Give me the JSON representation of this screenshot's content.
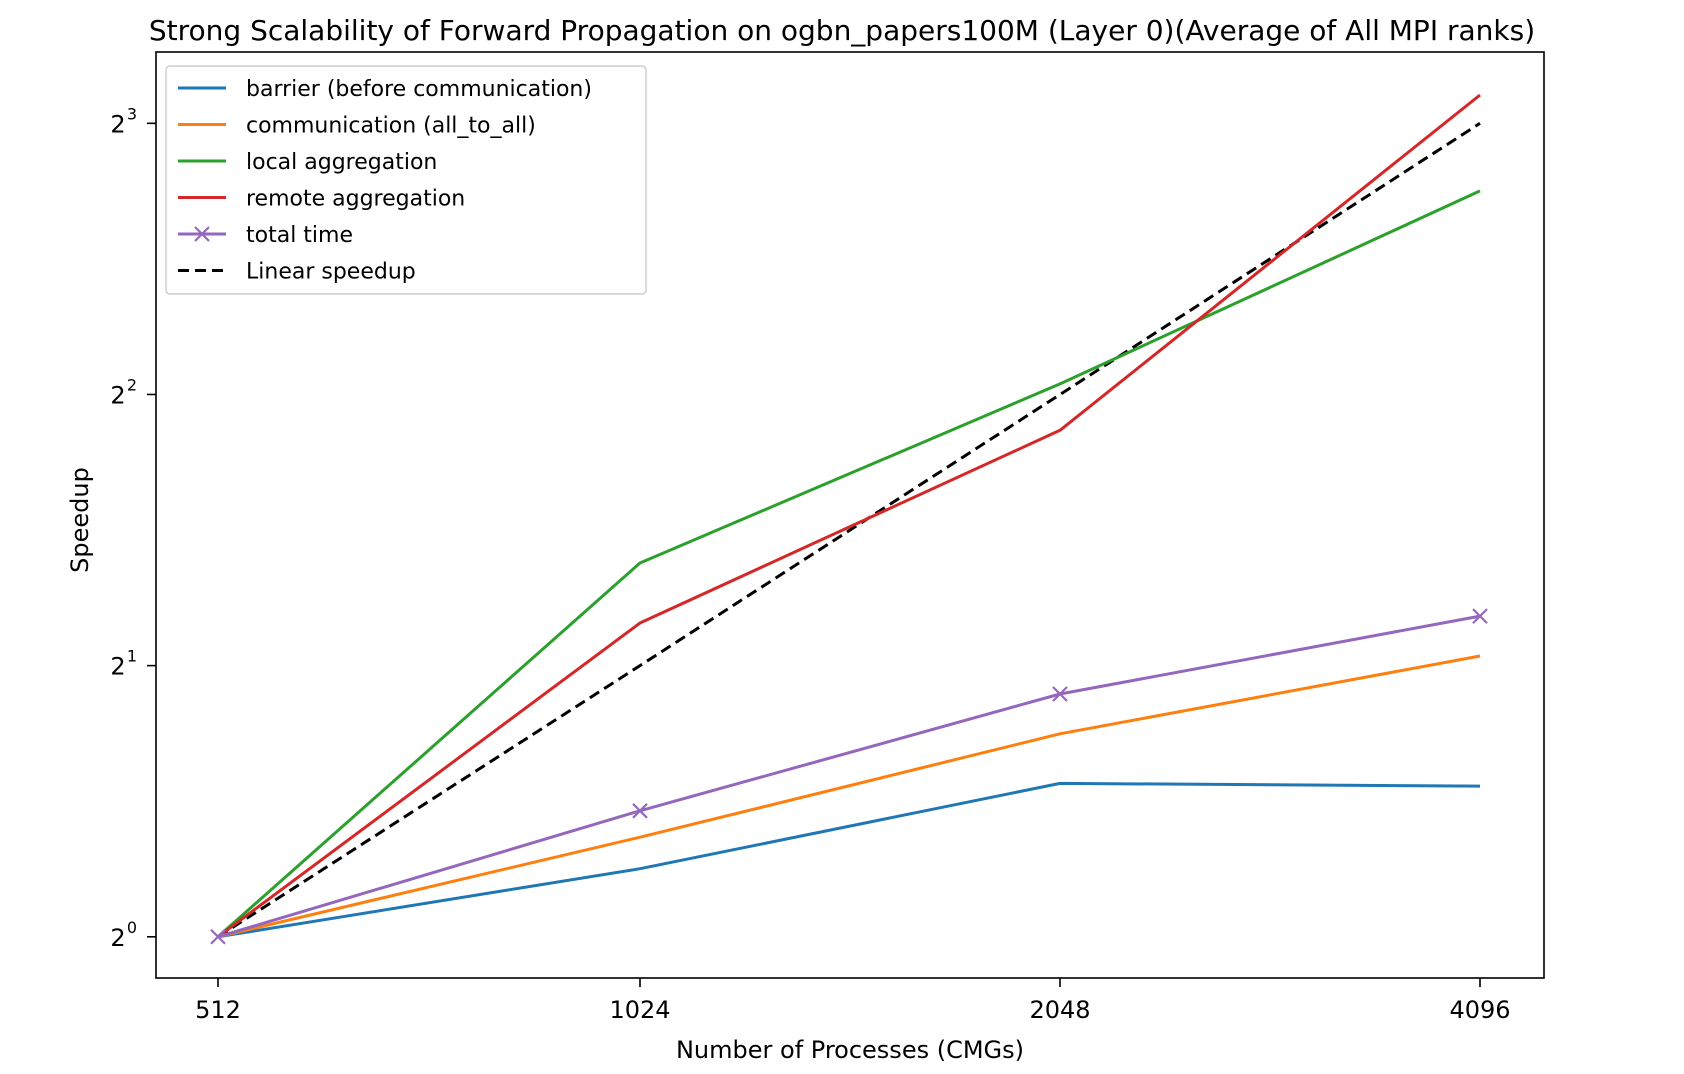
{
  "chart_data": {
    "type": "line",
    "title": "Strong Scalability of Forward Propagation on ogbn_papers100M (Layer 0)(Average of All MPI ranks)",
    "xlabel": "Number of Processes (CMGs)",
    "ylabel": "Speedup",
    "x": [
      512,
      1024,
      2048,
      4096
    ],
    "x_tick_labels": [
      "512",
      "1024",
      "2048",
      "4096"
    ],
    "y_scale": "log2",
    "ylim": [
      0.9,
      9.6
    ],
    "y_ticks": [
      {
        "value": 1,
        "base": "2",
        "exp": "0"
      },
      {
        "value": 2,
        "base": "2",
        "exp": "1"
      },
      {
        "value": 4,
        "base": "2",
        "exp": "2"
      },
      {
        "value": 8,
        "base": "2",
        "exp": "3"
      }
    ],
    "legend_position": "upper-left",
    "series": [
      {
        "name": "barrier (before communication)",
        "color": "#1f77b4",
        "style": "solid",
        "marker": "none",
        "values": [
          1.0,
          1.19,
          1.48,
          1.47
        ]
      },
      {
        "name": "communication (all_to_all)",
        "color": "#ff7f0e",
        "style": "solid",
        "marker": "none",
        "values": [
          1.0,
          1.29,
          1.68,
          2.05
        ]
      },
      {
        "name": "local aggregation",
        "color": "#2ca02c",
        "style": "solid",
        "marker": "none",
        "values": [
          1.0,
          2.6,
          4.11,
          6.73
        ]
      },
      {
        "name": "remote aggregation",
        "color": "#d62728",
        "style": "solid",
        "marker": "none",
        "values": [
          1.0,
          2.23,
          3.65,
          8.6
        ]
      },
      {
        "name": "total time",
        "color": "#9467bd",
        "style": "solid",
        "marker": "x",
        "values": [
          1.0,
          1.38,
          1.86,
          2.27
        ]
      },
      {
        "name": "Linear speedup",
        "color": "#000000",
        "style": "dashed",
        "marker": "none",
        "values": [
          1,
          2,
          4,
          8
        ]
      }
    ]
  }
}
